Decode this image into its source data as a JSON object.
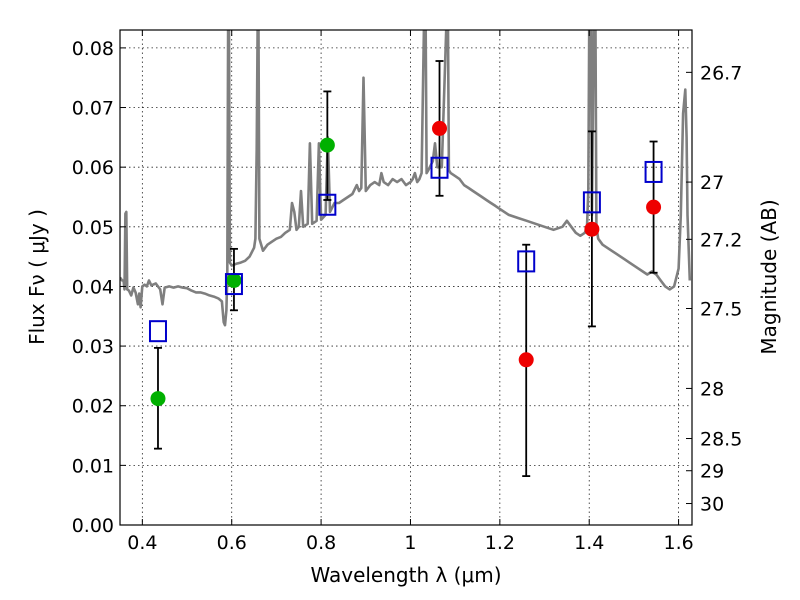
{
  "chart_data": {
    "type": "scatter",
    "title": "",
    "xlabel": "Wavelength  λ (μm)",
    "ylabel": "Flux  Fν  ( μJy )",
    "y2label": "Magnitude (AB)",
    "xlim": [
      0.35,
      1.63
    ],
    "ylim": [
      0.0,
      0.083
    ],
    "grid": true,
    "x_ticks": [
      0.4,
      0.6,
      0.8,
      1.0,
      1.2,
      1.4,
      1.6
    ],
    "x_tick_labels": [
      "0.4",
      "0.6",
      "0.8",
      "1",
      "1.2",
      "1.4",
      "1.6"
    ],
    "y_ticks": [
      0.0,
      0.01,
      0.02,
      0.03,
      0.04,
      0.05,
      0.06,
      0.07,
      0.08
    ],
    "y_tick_labels": [
      "0.00",
      "0.01",
      "0.02",
      "0.03",
      "0.04",
      "0.05",
      "0.06",
      "0.07",
      "0.08"
    ],
    "y2_ticks": [
      {
        "label": "26.7",
        "flux": 0.0759
      },
      {
        "label": "27",
        "flux": 0.0575
      },
      {
        "label": "27.2",
        "flux": 0.0479
      },
      {
        "label": "27.5",
        "flux": 0.0363
      },
      {
        "label": "28",
        "flux": 0.0229
      },
      {
        "label": "28.5",
        "flux": 0.0145
      },
      {
        "label": "29",
        "flux": 0.0091
      },
      {
        "label": "30",
        "flux": 0.0036
      }
    ],
    "colors": {
      "spectrum": "#7f7f7f",
      "model": "#0000cc",
      "obs_green": "#00b000",
      "obs_red": "#ee0000",
      "errorbar": "#000000"
    },
    "series": [
      {
        "kind": "line",
        "color": "spectrum",
        "points": [
          [
            0.35,
            0.0415
          ],
          [
            0.355,
            0.041
          ],
          [
            0.358,
            0.041
          ],
          [
            0.36,
            0.0395
          ],
          [
            0.362,
            0.0522
          ],
          [
            0.364,
            0.0525
          ],
          [
            0.366,
            0.0395
          ],
          [
            0.37,
            0.0393
          ],
          [
            0.375,
            0.0385
          ],
          [
            0.38,
            0.0398
          ],
          [
            0.385,
            0.039
          ],
          [
            0.39,
            0.037
          ],
          [
            0.393,
            0.0388
          ],
          [
            0.396,
            0.0365
          ],
          [
            0.4,
            0.04
          ],
          [
            0.405,
            0.0403
          ],
          [
            0.41,
            0.04
          ],
          [
            0.415,
            0.041
          ],
          [
            0.42,
            0.0402
          ],
          [
            0.43,
            0.0405
          ],
          [
            0.44,
            0.0395
          ],
          [
            0.445,
            0.037
          ],
          [
            0.45,
            0.0398
          ],
          [
            0.46,
            0.04
          ],
          [
            0.47,
            0.0398
          ],
          [
            0.48,
            0.04
          ],
          [
            0.49,
            0.0398
          ],
          [
            0.5,
            0.0397
          ],
          [
            0.51,
            0.0393
          ],
          [
            0.52,
            0.039
          ],
          [
            0.53,
            0.039
          ],
          [
            0.54,
            0.0388
          ],
          [
            0.55,
            0.0385
          ],
          [
            0.56,
            0.0383
          ],
          [
            0.57,
            0.038
          ],
          [
            0.578,
            0.0375
          ],
          [
            0.582,
            0.034
          ],
          [
            0.585,
            0.0335
          ],
          [
            0.588,
            0.036
          ],
          [
            0.59,
            0.042
          ],
          [
            0.592,
            0.083
          ],
          [
            0.594,
            0.083
          ],
          [
            0.596,
            0.044
          ],
          [
            0.6,
            0.0435
          ],
          [
            0.61,
            0.0438
          ],
          [
            0.62,
            0.044
          ],
          [
            0.63,
            0.0443
          ],
          [
            0.64,
            0.045
          ],
          [
            0.65,
            0.0465
          ],
          [
            0.653,
            0.048
          ],
          [
            0.656,
            0.063
          ],
          [
            0.658,
            0.083
          ],
          [
            0.66,
            0.083
          ],
          [
            0.662,
            0.048
          ],
          [
            0.67,
            0.046
          ],
          [
            0.68,
            0.047
          ],
          [
            0.69,
            0.0475
          ],
          [
            0.7,
            0.048
          ],
          [
            0.71,
            0.0483
          ],
          [
            0.72,
            0.049
          ],
          [
            0.73,
            0.0495
          ],
          [
            0.735,
            0.054
          ],
          [
            0.74,
            0.0525
          ],
          [
            0.745,
            0.0495
          ],
          [
            0.75,
            0.05
          ],
          [
            0.755,
            0.056
          ],
          [
            0.76,
            0.05
          ],
          [
            0.77,
            0.0505
          ],
          [
            0.775,
            0.064
          ],
          [
            0.78,
            0.0505
          ],
          [
            0.79,
            0.051
          ],
          [
            0.795,
            0.064
          ],
          [
            0.8,
            0.0512
          ],
          [
            0.81,
            0.052
          ],
          [
            0.815,
            0.065
          ],
          [
            0.82,
            0.0525
          ],
          [
            0.83,
            0.054
          ],
          [
            0.84,
            0.054
          ],
          [
            0.85,
            0.0545
          ],
          [
            0.86,
            0.055
          ],
          [
            0.87,
            0.0555
          ],
          [
            0.88,
            0.057
          ],
          [
            0.885,
            0.056
          ],
          [
            0.89,
            0.0565
          ],
          [
            0.895,
            0.075
          ],
          [
            0.9,
            0.056
          ],
          [
            0.91,
            0.057
          ],
          [
            0.92,
            0.0575
          ],
          [
            0.93,
            0.057
          ],
          [
            0.935,
            0.059
          ],
          [
            0.94,
            0.0575
          ],
          [
            0.95,
            0.057
          ],
          [
            0.96,
            0.058
          ],
          [
            0.97,
            0.0575
          ],
          [
            0.98,
            0.058
          ],
          [
            0.99,
            0.057
          ],
          [
            1.0,
            0.0575
          ],
          [
            1.005,
            0.058
          ],
          [
            1.01,
            0.059
          ],
          [
            1.015,
            0.0575
          ],
          [
            1.02,
            0.058
          ],
          [
            1.025,
            0.059
          ],
          [
            1.03,
            0.083
          ],
          [
            1.034,
            0.083
          ],
          [
            1.036,
            0.059
          ],
          [
            1.04,
            0.0595
          ],
          [
            1.05,
            0.061
          ],
          [
            1.055,
            0.064
          ],
          [
            1.06,
            0.06
          ],
          [
            1.07,
            0.06
          ],
          [
            1.08,
            0.083
          ],
          [
            1.084,
            0.083
          ],
          [
            1.086,
            0.0595
          ],
          [
            1.09,
            0.059
          ],
          [
            1.1,
            0.0585
          ],
          [
            1.11,
            0.058
          ],
          [
            1.12,
            0.057
          ],
          [
            1.13,
            0.0565
          ],
          [
            1.14,
            0.056
          ],
          [
            1.15,
            0.0555
          ],
          [
            1.16,
            0.055
          ],
          [
            1.17,
            0.0545
          ],
          [
            1.18,
            0.054
          ],
          [
            1.19,
            0.0535
          ],
          [
            1.2,
            0.053
          ],
          [
            1.22,
            0.052
          ],
          [
            1.24,
            0.0515
          ],
          [
            1.26,
            0.051
          ],
          [
            1.28,
            0.0505
          ],
          [
            1.3,
            0.05
          ],
          [
            1.32,
            0.0495
          ],
          [
            1.34,
            0.05
          ],
          [
            1.35,
            0.051
          ],
          [
            1.36,
            0.05
          ],
          [
            1.37,
            0.049
          ],
          [
            1.38,
            0.0485
          ],
          [
            1.39,
            0.049
          ],
          [
            1.395,
            0.05
          ],
          [
            1.398,
            0.056
          ],
          [
            1.4,
            0.083
          ],
          [
            1.404,
            0.083
          ],
          [
            1.406,
            0.052
          ],
          [
            1.41,
            0.083
          ],
          [
            1.414,
            0.083
          ],
          [
            1.416,
            0.05
          ],
          [
            1.42,
            0.048
          ],
          [
            1.43,
            0.047
          ],
          [
            1.44,
            0.0465
          ],
          [
            1.45,
            0.046
          ],
          [
            1.46,
            0.0455
          ],
          [
            1.47,
            0.045
          ],
          [
            1.48,
            0.0445
          ],
          [
            1.49,
            0.044
          ],
          [
            1.5,
            0.0435
          ],
          [
            1.51,
            0.043
          ],
          [
            1.52,
            0.0425
          ],
          [
            1.53,
            0.042
          ],
          [
            1.54,
            0.0425
          ],
          [
            1.55,
            0.042
          ],
          [
            1.56,
            0.041
          ],
          [
            1.57,
            0.04
          ],
          [
            1.58,
            0.0395
          ],
          [
            1.59,
            0.04
          ],
          [
            1.6,
            0.043
          ],
          [
            1.605,
            0.052
          ],
          [
            1.61,
            0.069
          ],
          [
            1.615,
            0.073
          ],
          [
            1.618,
            0.065
          ],
          [
            1.62,
            0.052
          ],
          [
            1.625,
            0.041
          ]
        ]
      },
      {
        "kind": "open-square",
        "color": "model",
        "points": [
          [
            0.435,
            0.0325
          ],
          [
            0.605,
            0.0404
          ],
          [
            0.814,
            0.0537
          ],
          [
            1.065,
            0.0599
          ],
          [
            1.259,
            0.0442
          ],
          [
            1.406,
            0.0541
          ],
          [
            1.544,
            0.0592
          ]
        ]
      },
      {
        "kind": "filled-circle",
        "color": "obs_green",
        "points": [
          {
            "x": 0.435,
            "y": 0.0212,
            "err": [
              0.0128,
              0.0297
            ]
          },
          {
            "x": 0.605,
            "y": 0.041,
            "err": [
              0.036,
              0.0463
            ]
          },
          {
            "x": 0.814,
            "y": 0.0637,
            "err": [
              0.0545,
              0.0727
            ]
          }
        ]
      },
      {
        "kind": "filled-circle",
        "color": "obs_red",
        "points": [
          {
            "x": 1.065,
            "y": 0.0665,
            "err": [
              0.0552,
              0.0778
            ]
          },
          {
            "x": 1.259,
            "y": 0.0277,
            "err": [
              0.0082,
              0.047
            ]
          },
          {
            "x": 1.406,
            "y": 0.0496,
            "err": [
              0.0333,
              0.066
            ]
          },
          {
            "x": 1.544,
            "y": 0.0533,
            "err": [
              0.0423,
              0.0643
            ]
          }
        ]
      }
    ]
  }
}
